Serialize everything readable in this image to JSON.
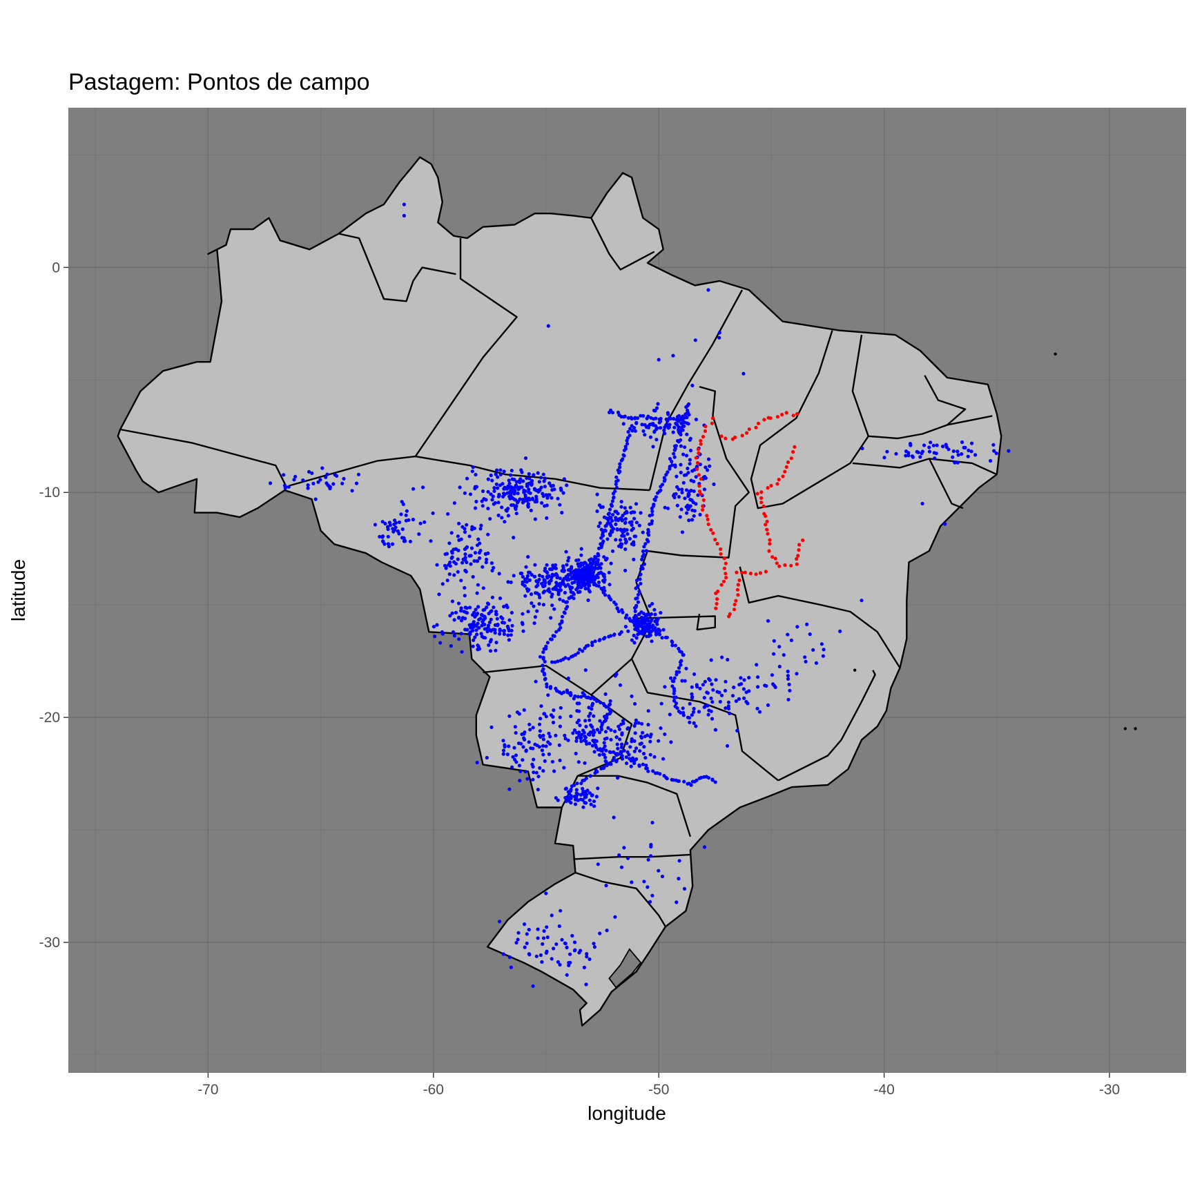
{
  "chart_data": {
    "type": "map-scatter",
    "title": "Pastagem: Pontos de campo",
    "xlabel": "longitude",
    "ylabel": "latitude",
    "xlim": [
      -76.2,
      -26.6
    ],
    "ylim": [
      -35.8,
      7.1
    ],
    "x_ticks": [
      -70,
      -60,
      -50,
      -40,
      -30
    ],
    "y_ticks": [
      0,
      -10,
      -20,
      -30
    ],
    "x_tick_labels": [
      "-70",
      "-60",
      "-50",
      "-40",
      "-30"
    ],
    "y_tick_labels": [
      "0",
      "-10",
      "-20",
      "-30"
    ],
    "grid": true,
    "panel_background": "#7f7f7f",
    "land_fill": "#bebebe",
    "border_color": "#000000",
    "series": [
      {
        "color": "#0000ff",
        "clusters": [
          {
            "center": [
              -53.2,
              -13.6
            ],
            "spread": [
              0.8,
              0.6
            ],
            "count": 220
          },
          {
            "center": [
              -56.2,
              -10.0
            ],
            "spread": [
              2.0,
              0.9
            ],
            "count": 200
          },
          {
            "center": [
              -54.8,
              -14.0
            ],
            "spread": [
              1.4,
              0.9
            ],
            "count": 150
          },
          {
            "center": [
              -57.8,
              -15.8
            ],
            "spread": [
              1.6,
              1.0
            ],
            "count": 150
          },
          {
            "center": [
              -51.8,
              -11.5
            ],
            "spread": [
              0.8,
              1.0
            ],
            "count": 100
          },
          {
            "center": [
              -50.6,
              -15.9
            ],
            "spread": [
              0.7,
              0.6
            ],
            "count": 110
          },
          {
            "center": [
              -58.6,
              -12.8
            ],
            "spread": [
              1.3,
              1.4
            ],
            "count": 90
          },
          {
            "center": [
              -48.6,
              -9.5
            ],
            "spread": [
              0.7,
              1.9
            ],
            "count": 90
          },
          {
            "center": [
              -49.8,
              -7.0
            ],
            "spread": [
              1.3,
              0.6
            ],
            "count": 70
          },
          {
            "center": [
              -47.3,
              -19.0
            ],
            "spread": [
              1.9,
              1.3
            ],
            "count": 80
          },
          {
            "center": [
              -53.0,
              -20.0
            ],
            "spread": [
              2.4,
              1.8
            ],
            "count": 110
          },
          {
            "center": [
              -55.8,
              -21.5
            ],
            "spread": [
              1.6,
              1.5
            ],
            "count": 80
          },
          {
            "center": [
              -51.0,
              -21.2
            ],
            "spread": [
              1.8,
              0.9
            ],
            "count": 60
          },
          {
            "center": [
              -53.5,
              -23.5
            ],
            "spread": [
              0.8,
              0.4
            ],
            "count": 50
          },
          {
            "center": [
              -61.5,
              -11.6
            ],
            "spread": [
              0.9,
              0.8
            ],
            "count": 45
          },
          {
            "center": [
              -64.5,
              -9.5
            ],
            "spread": [
              2.5,
              0.5
            ],
            "count": 35
          },
          {
            "center": [
              -37.5,
              -8.2
            ],
            "spread": [
              2.4,
              0.4
            ],
            "count": 50
          },
          {
            "center": [
              -44.2,
              -17.2
            ],
            "spread": [
              1.6,
              1.6
            ],
            "count": 30
          },
          {
            "center": [
              -54.5,
              -30.2
            ],
            "spread": [
              2.0,
              1.3
            ],
            "count": 60
          },
          {
            "center": [
              -50.5,
              -26.8
            ],
            "spread": [
              2.0,
              1.8
            ],
            "count": 25
          },
          {
            "center": [
              -48.0,
              -4.0
            ],
            "spread": [
              2.0,
              1.3
            ],
            "count": 5
          }
        ],
        "points": [
          [
            -61.3,
            2.8
          ],
          [
            -61.3,
            2.3
          ],
          [
            -54.9,
            -2.6
          ],
          [
            -50.0,
            -4.1
          ],
          [
            -47.8,
            -1.0
          ],
          [
            -47.3,
            -2.9
          ],
          [
            -37.3,
            -11.4
          ],
          [
            -41.0,
            -14.8
          ],
          [
            -38.3,
            -10.5
          ]
        ],
        "tracks": [
          [
            [
              -52.2,
              -6.4
            ],
            [
              -51.2,
              -6.7
            ],
            [
              -50.2,
              -6.7
            ],
            [
              -49.2,
              -6.8
            ],
            [
              -48.6,
              -6.5
            ]
          ],
          [
            [
              -48.7,
              -6.0
            ],
            [
              -49.1,
              -7.7
            ],
            [
              -49.6,
              -9.1
            ],
            [
              -50.2,
              -10.4
            ],
            [
              -50.6,
              -12.4
            ],
            [
              -50.9,
              -14.3
            ],
            [
              -51.1,
              -15.8
            ]
          ],
          [
            [
              -51.2,
              -7.0
            ],
            [
              -51.8,
              -9.2
            ],
            [
              -52.2,
              -11.0
            ],
            [
              -52.7,
              -12.8
            ],
            [
              -53.2,
              -13.7
            ]
          ],
          [
            [
              -53.2,
              -13.7
            ],
            [
              -52.1,
              -14.8
            ],
            [
              -51.1,
              -15.8
            ],
            [
              -49.6,
              -16.5
            ],
            [
              -48.9,
              -17.2
            ],
            [
              -49.4,
              -18.6
            ],
            [
              -49.2,
              -19.6
            ],
            [
              -48.4,
              -20.4
            ]
          ],
          [
            [
              -53.2,
              -13.7
            ],
            [
              -54.0,
              -14.7
            ],
            [
              -54.4,
              -16.0
            ],
            [
              -55.2,
              -17.2
            ],
            [
              -55.0,
              -18.6
            ],
            [
              -54.3,
              -18.9
            ],
            [
              -53.0,
              -19.1
            ],
            [
              -52.2,
              -19.6
            ],
            [
              -52.6,
              -20.6
            ],
            [
              -53.6,
              -20.9
            ],
            [
              -52.7,
              -21.4
            ],
            [
              -51.9,
              -21.6
            ],
            [
              -50.7,
              -22.2
            ],
            [
              -49.8,
              -22.6
            ],
            [
              -48.7,
              -23.0
            ],
            [
              -48.0,
              -22.6
            ],
            [
              -47.4,
              -22.9
            ]
          ],
          [
            [
              -52.6,
              -21.4
            ],
            [
              -52.2,
              -22.1
            ],
            [
              -53.4,
              -22.8
            ],
            [
              -53.9,
              -23.2
            ],
            [
              -54.0,
              -23.9
            ]
          ],
          [
            [
              -51.7,
              -16.2
            ],
            [
              -52.9,
              -16.7
            ],
            [
              -54.0,
              -17.4
            ],
            [
              -54.8,
              -17.6
            ]
          ]
        ]
      },
      {
        "color": "#ff0000",
        "tracks": [
          [
            [
              -47.6,
              -6.7
            ],
            [
              -48.1,
              -7.5
            ],
            [
              -48.3,
              -8.5
            ],
            [
              -48.2,
              -9.7
            ],
            [
              -48.0,
              -10.8
            ],
            [
              -47.6,
              -11.8
            ],
            [
              -47.2,
              -12.7
            ],
            [
              -47.0,
              -13.8
            ],
            [
              -47.4,
              -14.5
            ],
            [
              -47.5,
              -15.4
            ]
          ],
          [
            [
              -47.2,
              -7.5
            ],
            [
              -46.5,
              -7.6
            ],
            [
              -45.7,
              -7.1
            ],
            [
              -45.2,
              -6.7
            ],
            [
              -44.3,
              -6.5
            ],
            [
              -43.6,
              -6.6
            ]
          ],
          [
            [
              -44.0,
              -8.0
            ],
            [
              -44.4,
              -9.1
            ],
            [
              -44.8,
              -9.6
            ],
            [
              -45.6,
              -10.0
            ],
            [
              -45.3,
              -10.9
            ],
            [
              -45.2,
              -11.9
            ],
            [
              -45.0,
              -12.8
            ],
            [
              -44.6,
              -13.3
            ],
            [
              -43.9,
              -13.2
            ],
            [
              -43.8,
              -12.3
            ],
            [
              -43.4,
              -12.1
            ]
          ],
          [
            [
              -46.5,
              -13.6
            ],
            [
              -45.7,
              -13.6
            ],
            [
              -45.0,
              -13.5
            ]
          ],
          [
            [
              -46.4,
              -13.9
            ],
            [
              -46.6,
              -15.0
            ],
            [
              -47.0,
              -15.7
            ]
          ]
        ]
      }
    ]
  },
  "colors": {
    "point": "#0000ff",
    "highlight": "#ff0000",
    "panel": "#7f7f7f",
    "land": "#bebebe"
  }
}
